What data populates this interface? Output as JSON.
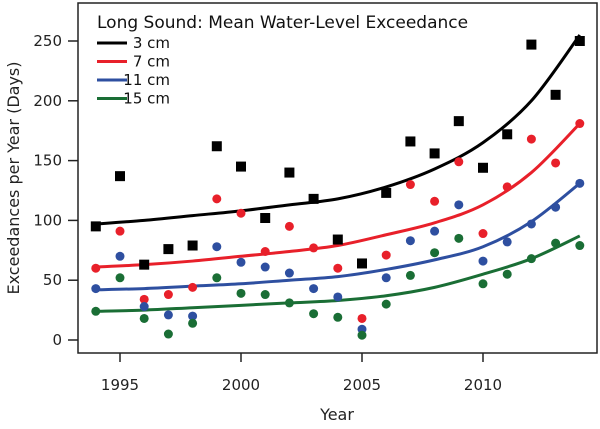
{
  "chart_data": {
    "type": "scatter",
    "title": "Long Sound: Mean Water-Level Exceedance",
    "xlabel": "Year",
    "ylabel": "Exceedances per Year (Days)",
    "xlim": [
      1993.5,
      2014.7
    ],
    "ylim": [
      -5,
      262
    ],
    "xticks": [
      1995,
      2000,
      2005,
      2010
    ],
    "yticks": [
      0,
      50,
      100,
      150,
      200,
      250
    ],
    "grid": false,
    "legend_placement": "top-left",
    "x": [
      1994,
      1995,
      1996,
      1997,
      1998,
      1999,
      2000,
      2001,
      2002,
      2003,
      2004,
      2005,
      2006,
      2007,
      2008,
      2009,
      2010,
      2011,
      2012,
      2013,
      2014
    ],
    "series": [
      {
        "name": "3  cm",
        "color": "#000000",
        "marker": "square",
        "values": [
          95,
          137,
          63,
          76,
          79,
          162,
          145,
          102,
          140,
          118,
          84,
          64,
          123,
          166,
          156,
          183,
          144,
          172,
          247,
          205,
          250
        ],
        "trend_x": [
          1994,
          1996,
          1998,
          2000,
          2002,
          2004,
          2006,
          2008,
          2010,
          2012,
          2014
        ],
        "trend": [
          97,
          100,
          104,
          108,
          113,
          118,
          128,
          143,
          165,
          200,
          255
        ]
      },
      {
        "name": "7  cm",
        "color": "#e8202a",
        "marker": "circle",
        "values": [
          60,
          91,
          34,
          38,
          44,
          118,
          106,
          74,
          95,
          77,
          60,
          18,
          71,
          130,
          116,
          149,
          89,
          128,
          168,
          148,
          181
        ],
        "trend_x": [
          1994,
          1996,
          1998,
          2000,
          2002,
          2004,
          2006,
          2008,
          2010,
          2012,
          2014
        ],
        "trend": [
          61,
          63,
          66,
          70,
          74,
          79,
          88,
          98,
          113,
          140,
          181
        ]
      },
      {
        "name": "11  cm",
        "color": "#2e4fa0",
        "marker": "circle",
        "values": [
          43,
          70,
          28,
          21,
          20,
          78,
          65,
          61,
          56,
          43,
          36,
          9,
          52,
          83,
          91,
          113,
          66,
          82,
          97,
          111,
          131
        ],
        "trend_x": [
          1994,
          1996,
          1998,
          2000,
          2002,
          2004,
          2006,
          2008,
          2010,
          2012,
          2014
        ],
        "trend": [
          42,
          43,
          45,
          47,
          50,
          53,
          59,
          67,
          78,
          99,
          131
        ]
      },
      {
        "name": "15  cm",
        "color": "#1a6e35",
        "marker": "circle",
        "values": [
          24,
          52,
          18,
          5,
          14,
          52,
          39,
          38,
          31,
          22,
          19,
          4,
          30,
          54,
          73,
          85,
          47,
          55,
          68,
          81,
          79
        ],
        "trend_x": [
          1994,
          1996,
          1998,
          2000,
          2002,
          2004,
          2006,
          2008,
          2010,
          2012,
          2014
        ],
        "trend": [
          24,
          25,
          27,
          29,
          31,
          33,
          37,
          44,
          55,
          68,
          87
        ]
      }
    ]
  }
}
